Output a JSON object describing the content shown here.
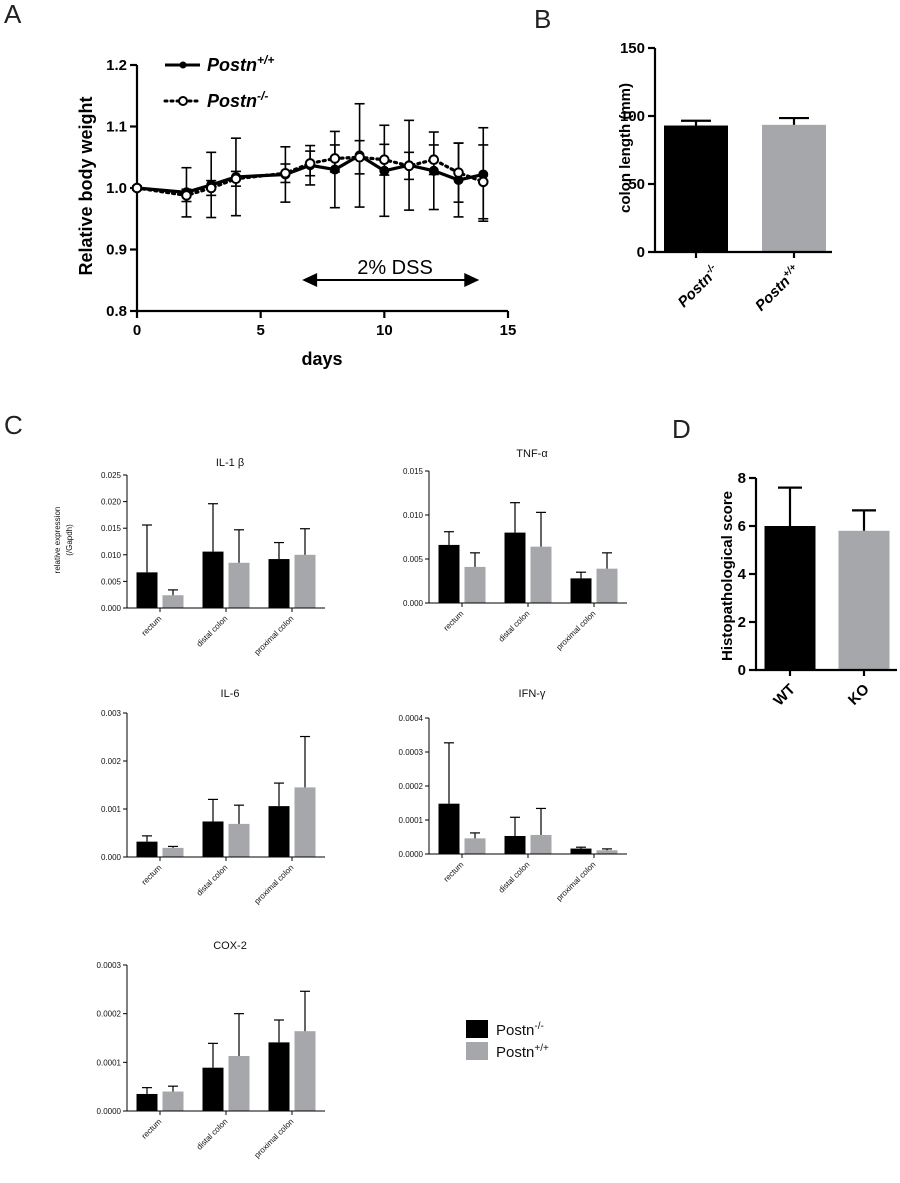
{
  "figure": {
    "panel_labels": [
      "A",
      "B",
      "C",
      "D"
    ],
    "colors": {
      "knockout": "#000000",
      "wildtype": "#A6A7AA"
    }
  },
  "chart_data": [
    {
      "panel": "A",
      "type": "line",
      "title": "",
      "xlabel": "days",
      "ylabel": "Relative body weight",
      "xlim": [
        0,
        15
      ],
      "ylim": [
        0.8,
        1.2
      ],
      "x_ticks": [
        "0",
        "5",
        "10",
        "15"
      ],
      "y_ticks": [
        "0.8",
        "0.9",
        "1.0",
        "1.1",
        "1.2"
      ],
      "annotation": "2% DSS",
      "annotation_range": [
        7,
        14
      ],
      "legend": [
        {
          "name": "Postn",
          "sup": "+/+",
          "style": "solid, filled markers"
        },
        {
          "name": "Postn",
          "sup": "-/-",
          "style": "dotted, open markers"
        }
      ],
      "series": [
        {
          "name": "Postn+/+",
          "x": [
            0,
            2,
            3,
            4,
            6,
            7,
            8,
            9,
            10,
            11,
            12,
            13,
            14
          ],
          "y": [
            1.0,
            0.993,
            1.005,
            1.018,
            1.022,
            1.037,
            1.03,
            1.053,
            1.028,
            1.037,
            1.028,
            1.013,
            1.022
          ],
          "err": [
            0.003,
            0.04,
            0.053,
            0.063,
            0.045,
            0.032,
            0.062,
            0.084,
            0.074,
            0.073,
            0.063,
            0.06,
            0.076
          ]
        },
        {
          "name": "Postn-/-",
          "x": [
            0,
            2,
            3,
            4,
            6,
            7,
            8,
            9,
            10,
            11,
            12,
            13,
            14
          ],
          "y": [
            1.0,
            0.988,
            1.0,
            1.015,
            1.024,
            1.04,
            1.048,
            1.05,
            1.046,
            1.036,
            1.046,
            1.025,
            1.01
          ],
          "err": [
            0.003,
            0.01,
            0.012,
            0.012,
            0.015,
            0.02,
            0.022,
            0.027,
            0.025,
            0.022,
            0.024,
            0.048,
            0.06
          ]
        }
      ]
    },
    {
      "panel": "B",
      "type": "bar",
      "ylabel": "colon length (mm)",
      "ylim": [
        0,
        150
      ],
      "y_ticks": [
        "0",
        "50",
        "100",
        "150"
      ],
      "categories": [
        {
          "name": "Postn",
          "sup": "-/-"
        },
        {
          "name": "Postn",
          "sup": "+/+"
        }
      ],
      "values": [
        93,
        93.5
      ],
      "errors": [
        3.5,
        5
      ],
      "colors": [
        "#000000",
        "#A6A7AA"
      ]
    },
    {
      "panel": "C",
      "type": "bar",
      "subcharts": [
        {
          "title": "IL-1 β",
          "ylabel_line1": "relative expression",
          "ylabel_line2": "(/Gapdh)",
          "ymax": 0.025,
          "y_ticks": [
            "0.000",
            "0.005",
            "0.010",
            "0.015",
            "0.020",
            "0.025"
          ],
          "categories": [
            "rectum",
            "distal colon",
            "proximal colon"
          ],
          "series": [
            {
              "name": "Postn-/-",
              "values": [
                0.0067,
                0.0106,
                0.0092
              ],
              "errors": [
                0.0089,
                0.009,
                0.0031
              ]
            },
            {
              "name": "Postn+/+",
              "values": [
                0.0024,
                0.0085,
                0.01
              ],
              "errors": [
                0.001,
                0.0062,
                0.0049
              ]
            }
          ]
        },
        {
          "title": "TNF-α",
          "ymax": 0.015,
          "y_ticks": [
            "0.000",
            "0.005",
            "0.010",
            "0.015"
          ],
          "categories": [
            "rectum",
            "distal colon",
            "proximal colon"
          ],
          "series": [
            {
              "name": "Postn-/-",
              "values": [
                0.0066,
                0.008,
                0.0028
              ],
              "errors": [
                0.0015,
                0.0034,
                0.0007
              ]
            },
            {
              "name": "Postn+/+",
              "values": [
                0.0041,
                0.0064,
                0.0039
              ],
              "errors": [
                0.0016,
                0.0039,
                0.0018
              ]
            }
          ]
        },
        {
          "title": "IL-6",
          "ymax": 0.003,
          "y_ticks": [
            "0.000",
            "0.001",
            "0.002",
            "0.003"
          ],
          "categories": [
            "rectum",
            "distal colon",
            "proximal colon"
          ],
          "series": [
            {
              "name": "Postn-/-",
              "values": [
                0.00032,
                0.00074,
                0.00106
              ],
              "errors": [
                0.00012,
                0.00046,
                0.00048
              ]
            },
            {
              "name": "Postn+/+",
              "values": [
                0.00019,
                0.00069,
                0.00145
              ],
              "errors": [
                3e-05,
                0.00039,
                0.00106
              ]
            }
          ]
        },
        {
          "title": "IFN-γ",
          "ymax": 0.0004,
          "y_ticks": [
            "0.0000",
            "0.0001",
            "0.0002",
            "0.0003",
            "0.0004"
          ],
          "categories": [
            "rectum",
            "distal colon",
            "proximal colon"
          ],
          "series": [
            {
              "name": "Postn-/-",
              "values": [
                0.000148,
                5.3e-05,
                1.6e-05
              ],
              "errors": [
                0.000179,
                5.5e-05,
                4e-06
              ]
            },
            {
              "name": "Postn+/+",
              "values": [
                4.6e-05,
                5.6e-05,
                1.1e-05
              ],
              "errors": [
                1.6e-05,
                7.8e-05,
                4e-06
              ]
            }
          ]
        },
        {
          "title": "COX-2",
          "ymax": 0.0003,
          "y_ticks": [
            "0.0000",
            "0.0001",
            "0.0002",
            "0.0003"
          ],
          "categories": [
            "rectum",
            "distal colon",
            "proximal colon"
          ],
          "series": [
            {
              "name": "Postn-/-",
              "values": [
                3.5e-05,
                8.9e-05,
                0.000141
              ],
              "errors": [
                1.3e-05,
                5e-05,
                4.6e-05
              ]
            },
            {
              "name": "Postn+/+",
              "values": [
                4e-05,
                0.000113,
                0.000164
              ],
              "errors": [
                1.1e-05,
                8.7e-05,
                8.2e-05
              ]
            }
          ]
        }
      ],
      "legend": [
        {
          "name": "Postn",
          "sup": "-/-",
          "color": "#000000"
        },
        {
          "name": "Postn",
          "sup": "+/+",
          "color": "#A6A7AA"
        }
      ]
    },
    {
      "panel": "D",
      "type": "bar",
      "ylabel": "Histopathological score",
      "ylim": [
        0,
        8
      ],
      "y_ticks": [
        "0",
        "2",
        "4",
        "6",
        "8"
      ],
      "categories": [
        "WT",
        "KO"
      ],
      "values": [
        6.0,
        5.8
      ],
      "errors": [
        1.6,
        0.85
      ],
      "colors": [
        "#000000",
        "#A6A7AA"
      ]
    }
  ]
}
